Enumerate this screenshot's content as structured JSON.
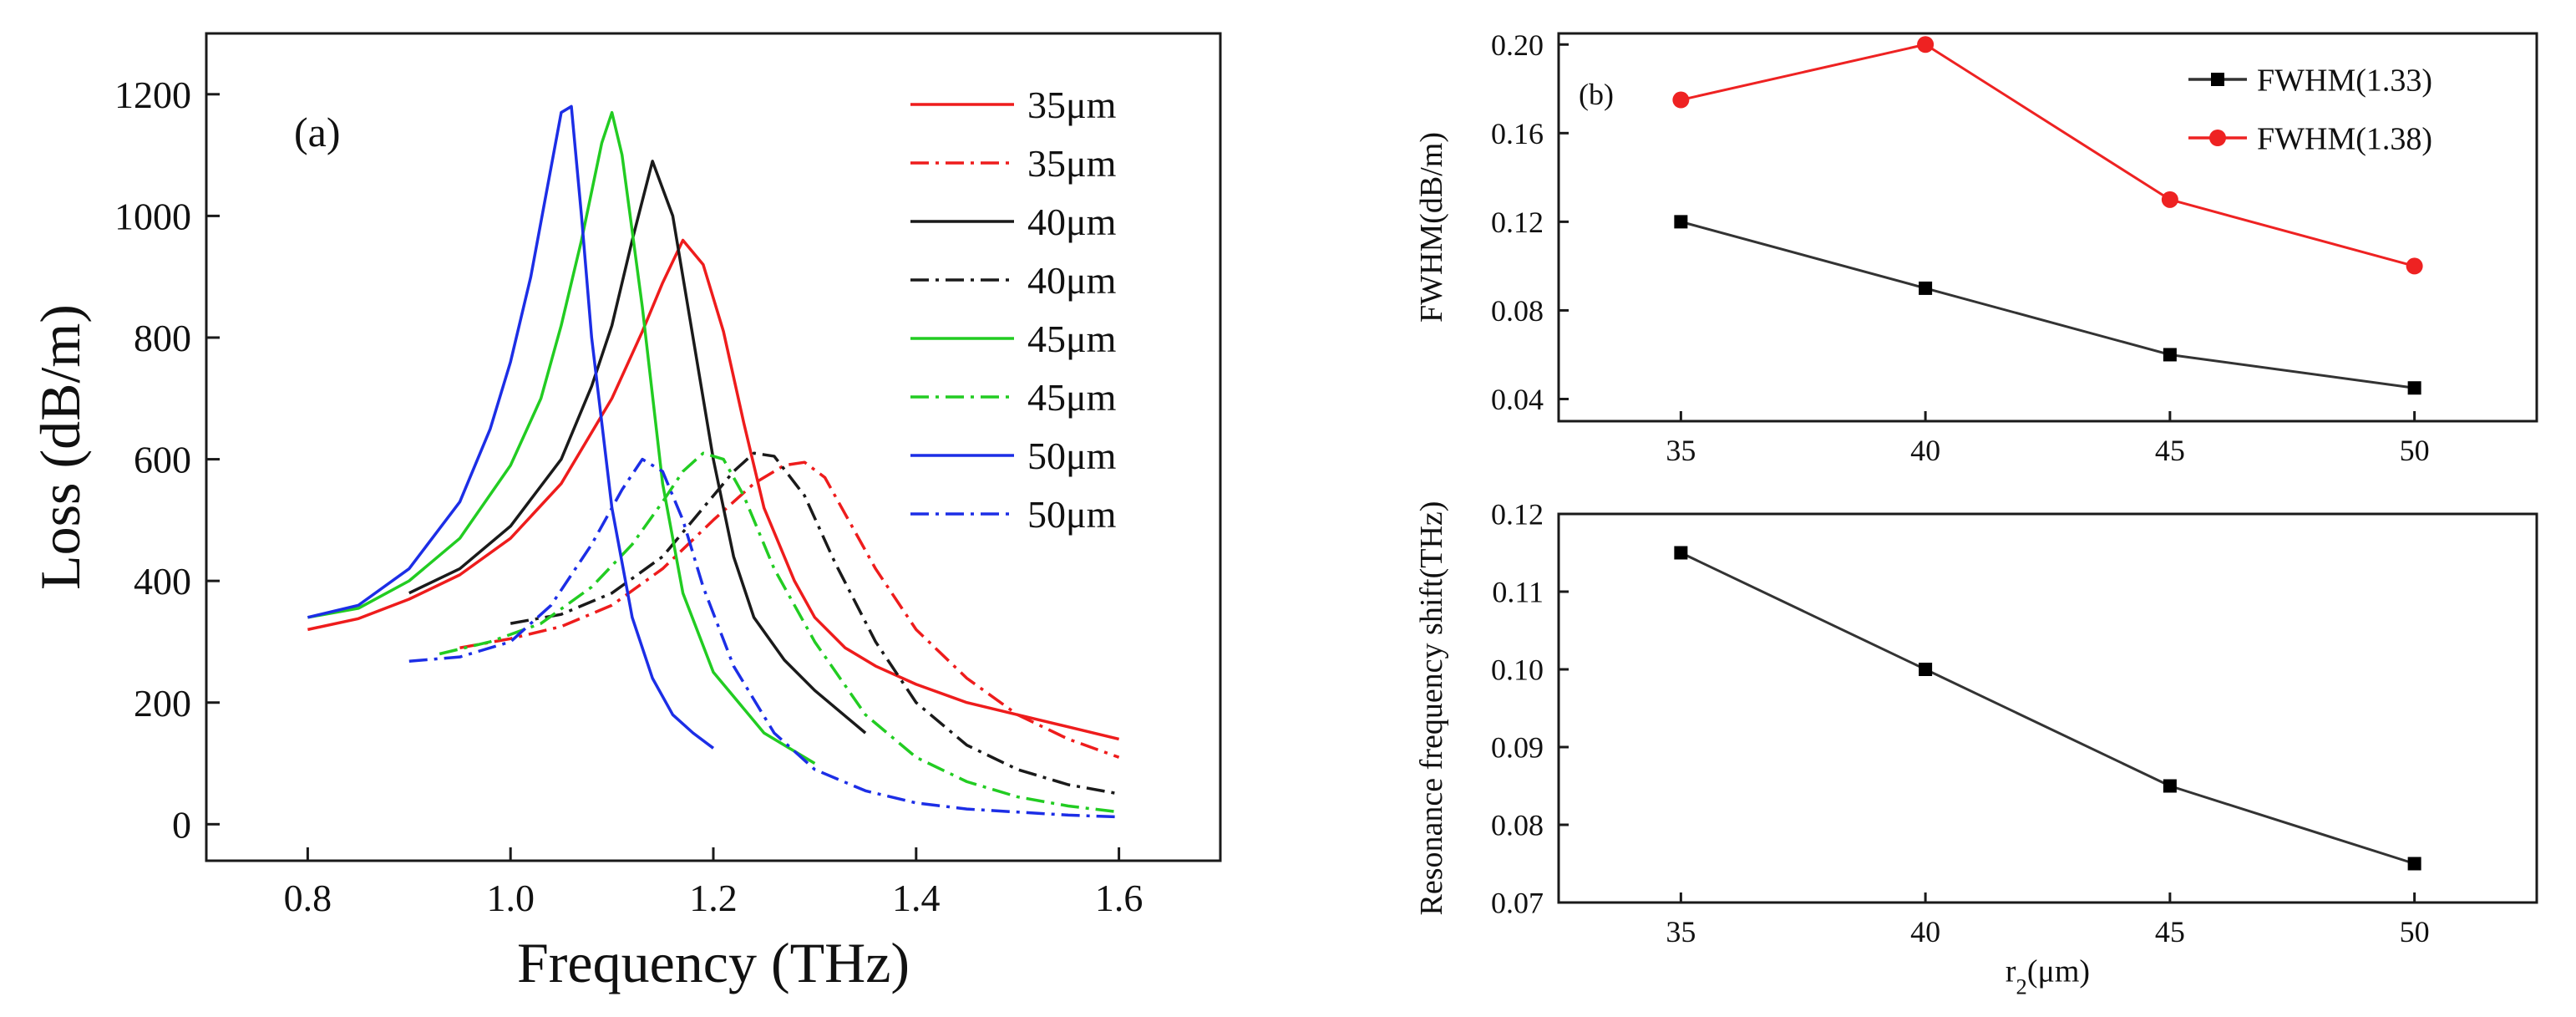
{
  "chart_data": [
    {
      "type": "line",
      "panel_label": "(a)",
      "title": "",
      "xlabel": "Frequency (THz)",
      "ylabel": "Loss (dB/m)",
      "xlim": [
        0.7,
        1.7
      ],
      "ylim": [
        -60,
        1300
      ],
      "xticks": [
        0.8,
        1.0,
        1.2,
        1.4,
        1.6
      ],
      "xtick_labels": [
        "0.8",
        "1.0",
        "1.2",
        "1.4",
        "1.6"
      ],
      "yticks": [
        0,
        200,
        400,
        600,
        800,
        1000,
        1200
      ],
      "ytick_labels": [
        "0",
        "200",
        "400",
        "600",
        "800",
        "1000",
        "1200"
      ],
      "legend_position": "top-right",
      "series": [
        {
          "name": "35μm",
          "color": "#ee1c1c",
          "dash": "solid",
          "x": [
            0.8,
            0.85,
            0.9,
            0.95,
            1.0,
            1.05,
            1.1,
            1.13,
            1.15,
            1.17,
            1.19,
            1.21,
            1.23,
            1.25,
            1.28,
            1.3,
            1.33,
            1.36,
            1.4,
            1.45,
            1.5,
            1.55,
            1.6
          ],
          "y": [
            320,
            338,
            370,
            410,
            470,
            560,
            700,
            810,
            890,
            960,
            920,
            810,
            660,
            520,
            400,
            340,
            290,
            260,
            230,
            200,
            180,
            160,
            140
          ]
        },
        {
          "name": "35μm",
          "color": "#ee1c1c",
          "dash": "dashdot",
          "x": [
            0.95,
            1.0,
            1.05,
            1.1,
            1.15,
            1.2,
            1.24,
            1.27,
            1.29,
            1.31,
            1.33,
            1.36,
            1.4,
            1.45,
            1.5,
            1.55,
            1.6
          ],
          "y": [
            290,
            305,
            325,
            360,
            420,
            500,
            560,
            590,
            595,
            570,
            510,
            420,
            320,
            240,
            180,
            140,
            110
          ]
        },
        {
          "name": "40μm",
          "color": "#1a1a1a",
          "dash": "solid",
          "x": [
            0.9,
            0.95,
            1.0,
            1.05,
            1.08,
            1.1,
            1.12,
            1.14,
            1.16,
            1.18,
            1.2,
            1.22,
            1.24,
            1.27,
            1.3,
            1.35
          ],
          "y": [
            380,
            420,
            490,
            600,
            720,
            820,
            960,
            1090,
            1000,
            800,
            600,
            440,
            340,
            270,
            220,
            150
          ]
        },
        {
          "name": "40μm",
          "color": "#1a1a1a",
          "dash": "dashdot",
          "x": [
            1.0,
            1.05,
            1.1,
            1.15,
            1.19,
            1.22,
            1.24,
            1.26,
            1.29,
            1.32,
            1.36,
            1.4,
            1.45,
            1.5,
            1.55,
            1.6
          ],
          "y": [
            330,
            345,
            380,
            440,
            520,
            580,
            610,
            605,
            540,
            430,
            300,
            200,
            130,
            90,
            65,
            50
          ]
        },
        {
          "name": "45μm",
          "color": "#22cc22",
          "dash": "solid",
          "x": [
            0.8,
            0.85,
            0.9,
            0.95,
            1.0,
            1.03,
            1.05,
            1.07,
            1.09,
            1.1,
            1.11,
            1.13,
            1.15,
            1.17,
            1.2,
            1.25,
            1.3
          ],
          "y": [
            340,
            355,
            400,
            470,
            590,
            700,
            820,
            960,
            1120,
            1170,
            1100,
            850,
            560,
            380,
            250,
            150,
            100
          ]
        },
        {
          "name": "45μm",
          "color": "#22cc22",
          "dash": "dashdot",
          "x": [
            0.93,
            0.98,
            1.03,
            1.08,
            1.12,
            1.15,
            1.17,
            1.19,
            1.21,
            1.23,
            1.26,
            1.3,
            1.35,
            1.4,
            1.45,
            1.5,
            1.55,
            1.6
          ],
          "y": [
            280,
            300,
            330,
            390,
            460,
            530,
            580,
            610,
            600,
            540,
            420,
            300,
            180,
            110,
            70,
            45,
            30,
            20
          ]
        },
        {
          "name": "50μm",
          "color": "#1c2ee6",
          "dash": "solid",
          "x": [
            0.8,
            0.85,
            0.9,
            0.95,
            0.98,
            1.0,
            1.02,
            1.04,
            1.05,
            1.06,
            1.07,
            1.08,
            1.1,
            1.12,
            1.14,
            1.16,
            1.18,
            1.2
          ],
          "y": [
            340,
            360,
            420,
            530,
            650,
            760,
            900,
            1080,
            1170,
            1180,
            1000,
            800,
            520,
            340,
            240,
            180,
            150,
            125
          ]
        },
        {
          "name": "50μm",
          "color": "#1c2ee6",
          "dash": "dashdot",
          "x": [
            0.9,
            0.95,
            1.0,
            1.04,
            1.08,
            1.11,
            1.13,
            1.15,
            1.17,
            1.19,
            1.22,
            1.26,
            1.3,
            1.35,
            1.4,
            1.45,
            1.5,
            1.55,
            1.6
          ],
          "y": [
            268,
            275,
            300,
            360,
            460,
            550,
            600,
            580,
            500,
            390,
            260,
            150,
            90,
            55,
            35,
            25,
            20,
            15,
            12
          ]
        }
      ]
    },
    {
      "type": "line",
      "panel_label": "(b)",
      "title": "",
      "xlabel": "",
      "ylabel": "FWHM(dB/m)",
      "xlim": [
        32.5,
        52.5
      ],
      "ylim": [
        0.03,
        0.205
      ],
      "xticks": [
        35,
        40,
        45,
        50
      ],
      "xtick_labels": [
        "35",
        "40",
        "45",
        "50"
      ],
      "yticks": [
        0.04,
        0.08,
        0.12,
        0.16,
        0.2
      ],
      "ytick_labels": [
        "0.04",
        "0.08",
        "0.12",
        "0.16",
        "0.20"
      ],
      "legend_position": "top-right",
      "series": [
        {
          "name": "FWHM(1.33)",
          "color": "#333333",
          "marker": "square",
          "x": [
            35,
            40,
            45,
            50
          ],
          "y": [
            0.12,
            0.09,
            0.06,
            0.045
          ]
        },
        {
          "name": "FWHM(1.38)",
          "color": "#ee2222",
          "marker": "circle",
          "x": [
            35,
            40,
            45,
            50
          ],
          "y": [
            0.175,
            0.2,
            0.13,
            0.1
          ]
        }
      ]
    },
    {
      "type": "line",
      "panel_label": "",
      "title": "",
      "xlabel": "r2(μm)",
      "ylabel": "Resonance frequency shift(THz)",
      "xlim": [
        32.5,
        52.5
      ],
      "ylim": [
        0.07,
        0.12
      ],
      "xticks": [
        35,
        40,
        45,
        50
      ],
      "xtick_labels": [
        "35",
        "40",
        "45",
        "50"
      ],
      "yticks": [
        0.07,
        0.08,
        0.09,
        0.1,
        0.11,
        0.12
      ],
      "ytick_labels": [
        "0.07",
        "0.08",
        "0.09",
        "0.10",
        "0.11",
        "0.12"
      ],
      "series": [
        {
          "name": "Resonance frequency shift",
          "color": "#333333",
          "marker": "square",
          "x": [
            35,
            40,
            45,
            50
          ],
          "y": [
            0.115,
            0.1,
            0.085,
            0.075
          ]
        }
      ]
    }
  ]
}
